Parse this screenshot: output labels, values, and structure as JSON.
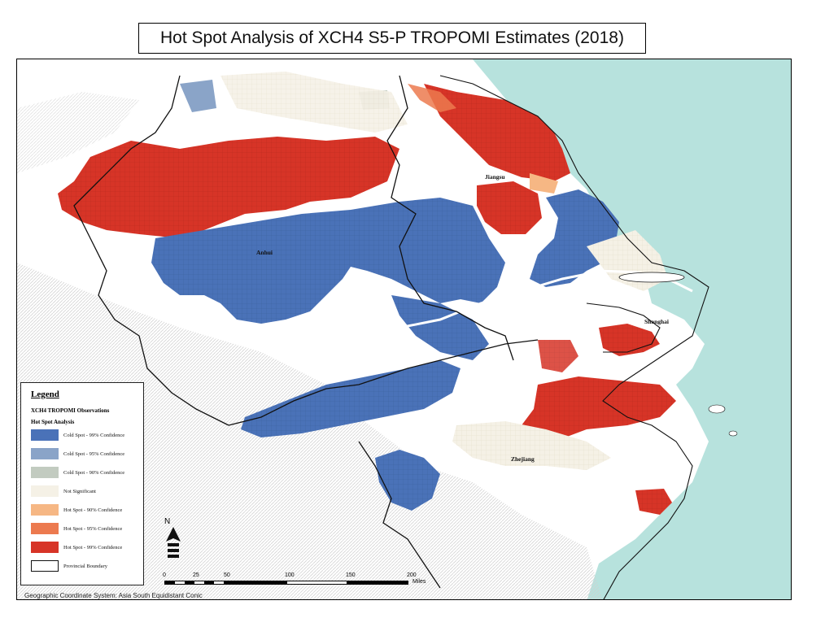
{
  "title": "Hot Spot Analysis of XCH4 S5-P TROPOMI Estimates (2018)",
  "labels": {
    "jiangsu": "Jiangsu",
    "anhui": "Anhui",
    "shanghai": "Shanghai",
    "zhejiang": "Zhejiang"
  },
  "legend": {
    "title": "Legend",
    "subtitle": "XCH4 TROPOMI Observations",
    "group": "Hot Spot Analysis",
    "items": [
      {
        "label": "Cold Spot - 99% Confidence",
        "color": "#4a72b8"
      },
      {
        "label": "Cold Spot - 95% Confidence",
        "color": "#8aa4c8"
      },
      {
        "label": "Cold Spot - 90% Confidence",
        "color": "#c2cbc0"
      },
      {
        "label": "Not Significant",
        "color": "#f5f1e6"
      },
      {
        "label": "Hot Spot - 90% Confidence",
        "color": "#f6b784"
      },
      {
        "label": "Hot Spot - 95% Confidence",
        "color": "#ec7a4f"
      },
      {
        "label": "Hot Spot - 99% Confidence",
        "color": "#d73427"
      },
      {
        "label": "Provincial Boundary",
        "color": "#ffffff"
      }
    ]
  },
  "scale": {
    "ticks": [
      "0",
      "25",
      "50",
      "100",
      "150",
      "200"
    ],
    "units": "Miles"
  },
  "north_label": "N",
  "coordinate_system": "Geographic Coordinate System: Asia South Equidistant Conic",
  "colors": {
    "sea": "#b7e2dd",
    "hot99": "#d73427",
    "hot95": "#ec7a4f",
    "hot90": "#f6b784",
    "cold99": "#4a72b8",
    "cold95": "#8aa4c8",
    "cold90": "#c2cbc0",
    "notsig": "#f5f1e6",
    "terrain": "#d9d9d9"
  }
}
